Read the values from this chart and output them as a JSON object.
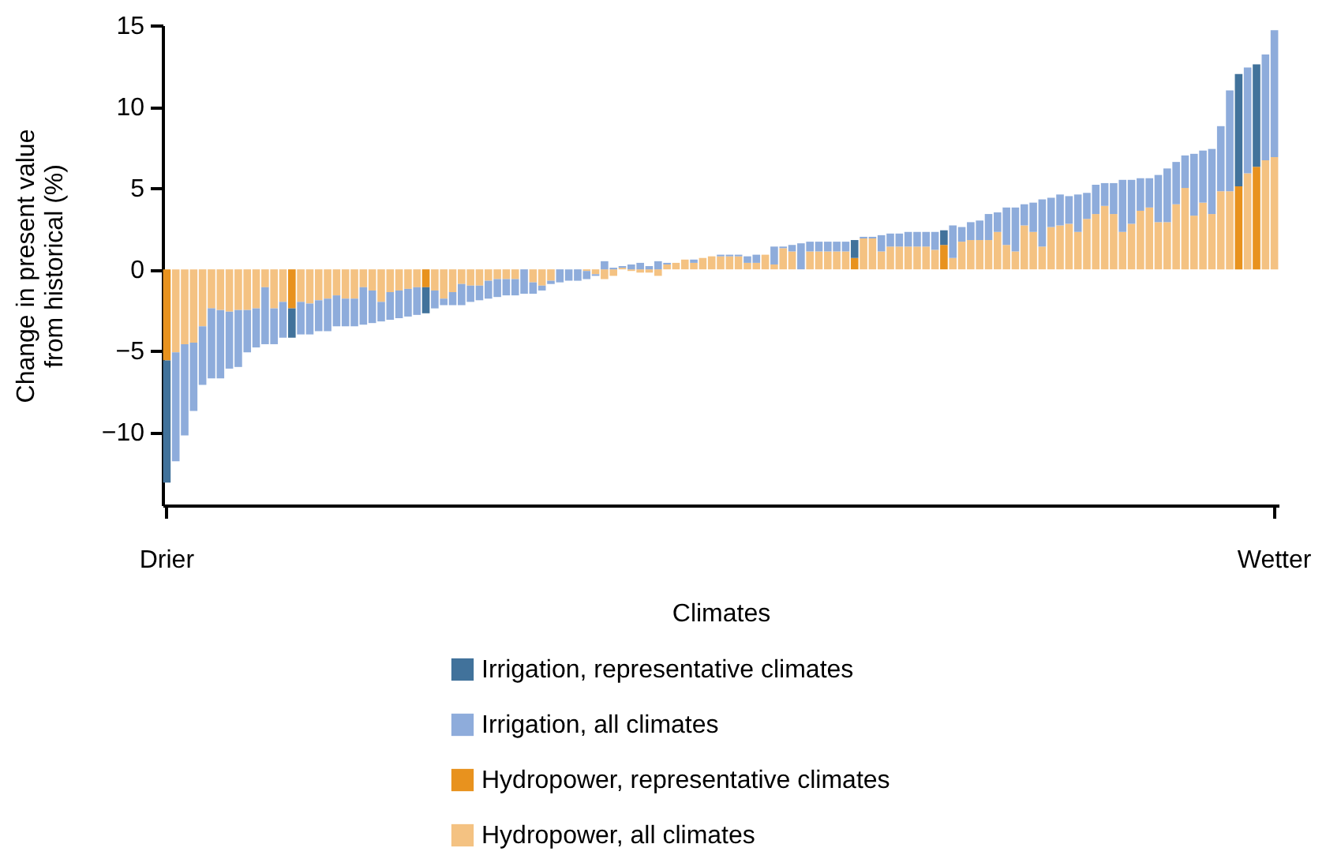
{
  "chart_data": {
    "type": "bar",
    "stacked": true,
    "xlabel": "Climates",
    "ylabel": "Change in present value\nfrom historical (%)",
    "legend": "bottom",
    "grid": false,
    "ylim": [
      -14.5,
      15
    ],
    "yticks": [
      -10,
      -5,
      0,
      5,
      10,
      15
    ],
    "categories": [
      "Drier",
      null,
      null,
      null,
      null,
      null,
      null,
      null,
      null,
      null,
      null,
      null,
      null,
      null,
      null,
      null,
      null,
      null,
      null,
      null,
      null,
      null,
      null,
      null,
      null,
      null,
      null,
      null,
      null,
      null,
      null,
      null,
      null,
      null,
      null,
      null,
      null,
      null,
      null,
      null,
      null,
      null,
      null,
      null,
      null,
      null,
      null,
      null,
      null,
      null,
      null,
      null,
      null,
      null,
      null,
      null,
      null,
      null,
      null,
      null,
      null,
      null,
      null,
      null,
      null,
      null,
      null,
      null,
      null,
      null,
      null,
      null,
      null,
      null,
      null,
      null,
      null,
      null,
      null,
      null,
      null,
      null,
      null,
      null,
      null,
      null,
      null,
      null,
      null,
      null,
      null,
      null,
      null,
      null,
      null,
      null,
      null,
      null,
      null,
      null,
      null,
      null,
      null,
      null,
      null,
      null,
      null,
      null,
      null,
      null,
      null,
      null,
      null,
      null,
      null,
      null,
      null,
      null,
      null,
      null,
      null,
      null,
      null,
      null,
      "Wetter"
    ],
    "series": [
      {
        "name": "Hydropower, all climates",
        "color": "#f4c282",
        "values": [
          null,
          -5.1,
          -4.6,
          -4.5,
          -3.5,
          -2.4,
          -2.5,
          -2.6,
          -2.5,
          -2.5,
          -2.4,
          -1.1,
          -2.4,
          -2.0,
          null,
          -2.0,
          -2.1,
          -1.9,
          -1.8,
          -1.6,
          -1.8,
          -1.8,
          -1.1,
          -1.3,
          -2.0,
          -1.4,
          -1.3,
          -1.2,
          -1.1,
          null,
          -1.3,
          -1.8,
          -1.4,
          -0.9,
          -1.0,
          -1.0,
          -0.7,
          -0.6,
          -0.6,
          -0.6,
          0,
          -0.8,
          -1.0,
          -0.7,
          0,
          0,
          0,
          -0.1,
          -0.3,
          -0.6,
          -0.4,
          0.1,
          -0.1,
          -0.2,
          -0.2,
          -0.4,
          0.3,
          0.4,
          0.6,
          0.4,
          0.7,
          0.8,
          0.8,
          0.8,
          0.8,
          0.4,
          0.4,
          0.9,
          0.3,
          1.3,
          1.1,
          0,
          1.1,
          1.1,
          1.1,
          1.1,
          1.1,
          null,
          1.9,
          1.9,
          1.1,
          1.4,
          1.4,
          1.4,
          1.4,
          1.4,
          1.2,
          null,
          0.7,
          1.7,
          1.8,
          1.8,
          1.8,
          2.3,
          1.5,
          1.1,
          2.7,
          2.3,
          1.4,
          2.6,
          2.7,
          2.8,
          2.3,
          3.1,
          3.4,
          3.9,
          3.4,
          2.3,
          2.8,
          3.6,
          3.8,
          2.9,
          2.9,
          4.0,
          5.0,
          3.3,
          4.1,
          3.4,
          4.8,
          4.8,
          null,
          5.9,
          null,
          6.7,
          6.9
        ]
      },
      {
        "name": "Hydropower, representative climates",
        "color": "#e8921e",
        "values": [
          -5.6,
          null,
          null,
          null,
          null,
          null,
          null,
          null,
          null,
          null,
          null,
          null,
          null,
          null,
          -2.4,
          null,
          null,
          null,
          null,
          null,
          null,
          null,
          null,
          null,
          null,
          null,
          null,
          null,
          null,
          -1.1,
          null,
          null,
          null,
          null,
          null,
          null,
          null,
          null,
          null,
          null,
          null,
          null,
          null,
          null,
          null,
          null,
          null,
          null,
          null,
          null,
          null,
          null,
          null,
          null,
          null,
          null,
          null,
          null,
          null,
          null,
          null,
          null,
          null,
          null,
          null,
          null,
          null,
          null,
          null,
          null,
          null,
          null,
          null,
          null,
          null,
          null,
          null,
          0.7,
          null,
          null,
          null,
          null,
          null,
          null,
          null,
          null,
          null,
          1.5,
          null,
          null,
          null,
          null,
          null,
          null,
          null,
          null,
          null,
          null,
          null,
          null,
          null,
          null,
          null,
          null,
          null,
          null,
          null,
          null,
          null,
          null,
          null,
          null,
          null,
          null,
          null,
          null,
          null,
          null,
          null,
          null,
          5.1,
          null,
          6.3,
          null,
          null
        ]
      },
      {
        "name": "Irrigation, all climates",
        "color": "#8eacdb",
        "values": [
          null,
          -6.7,
          -5.6,
          -4.2,
          -3.6,
          -4.3,
          -4.2,
          -3.5,
          -3.5,
          -2.6,
          -2.4,
          -3.5,
          -2.2,
          -2.2,
          null,
          -2.0,
          -1.9,
          -1.9,
          -2.0,
          -1.9,
          -1.7,
          -1.7,
          -2.3,
          -2.0,
          -1.2,
          -1.7,
          -1.7,
          -1.7,
          -1.7,
          null,
          -1.1,
          -0.4,
          -0.8,
          -1.3,
          -1.0,
          -0.9,
          -1.1,
          -1.1,
          -1.0,
          -1.0,
          -1.5,
          -0.7,
          -0.3,
          -0.2,
          -0.8,
          -0.7,
          -0.7,
          -0.5,
          -0.1,
          0.5,
          0.1,
          0.1,
          0.3,
          0.4,
          0.2,
          0.5,
          0.1,
          0,
          0,
          0.2,
          0,
          0,
          0.1,
          0.1,
          0.1,
          0.4,
          0.5,
          0,
          1.1,
          0.1,
          0.4,
          1.6,
          0.6,
          0.6,
          0.6,
          0.6,
          0.6,
          null,
          0.1,
          0.1,
          1.0,
          0.8,
          0.8,
          0.9,
          0.9,
          0.9,
          1.1,
          null,
          2.0,
          0.9,
          1.1,
          1.2,
          1.6,
          1.2,
          2.3,
          2.7,
          1.3,
          1.8,
          2.9,
          1.8,
          1.9,
          1.7,
          2.3,
          1.6,
          1.8,
          1.4,
          1.9,
          3.2,
          2.7,
          2.0,
          1.8,
          2.9,
          3.3,
          2.6,
          2.0,
          3.8,
          3.2,
          4.0,
          4.0,
          6.2,
          null,
          6.5,
          null,
          6.5,
          7.8
        ]
      },
      {
        "name": "Irrigation, representative climates",
        "color": "#41729b",
        "values": [
          -7.5,
          null,
          null,
          null,
          null,
          null,
          null,
          null,
          null,
          null,
          null,
          null,
          null,
          null,
          -1.8,
          null,
          null,
          null,
          null,
          null,
          null,
          null,
          null,
          null,
          null,
          null,
          null,
          null,
          null,
          -1.6,
          null,
          null,
          null,
          null,
          null,
          null,
          null,
          null,
          null,
          null,
          null,
          null,
          null,
          null,
          null,
          null,
          null,
          null,
          null,
          null,
          null,
          null,
          null,
          null,
          null,
          null,
          null,
          null,
          null,
          null,
          null,
          null,
          null,
          null,
          null,
          null,
          null,
          null,
          null,
          null,
          null,
          null,
          null,
          null,
          null,
          null,
          null,
          1.1,
          null,
          null,
          null,
          null,
          null,
          null,
          null,
          null,
          null,
          0.9,
          null,
          null,
          null,
          null,
          null,
          null,
          null,
          null,
          null,
          null,
          null,
          null,
          null,
          null,
          null,
          null,
          null,
          null,
          null,
          null,
          null,
          null,
          null,
          null,
          null,
          null,
          null,
          null,
          null,
          null,
          null,
          null,
          6.9,
          null,
          6.3,
          null,
          null
        ]
      }
    ]
  }
}
